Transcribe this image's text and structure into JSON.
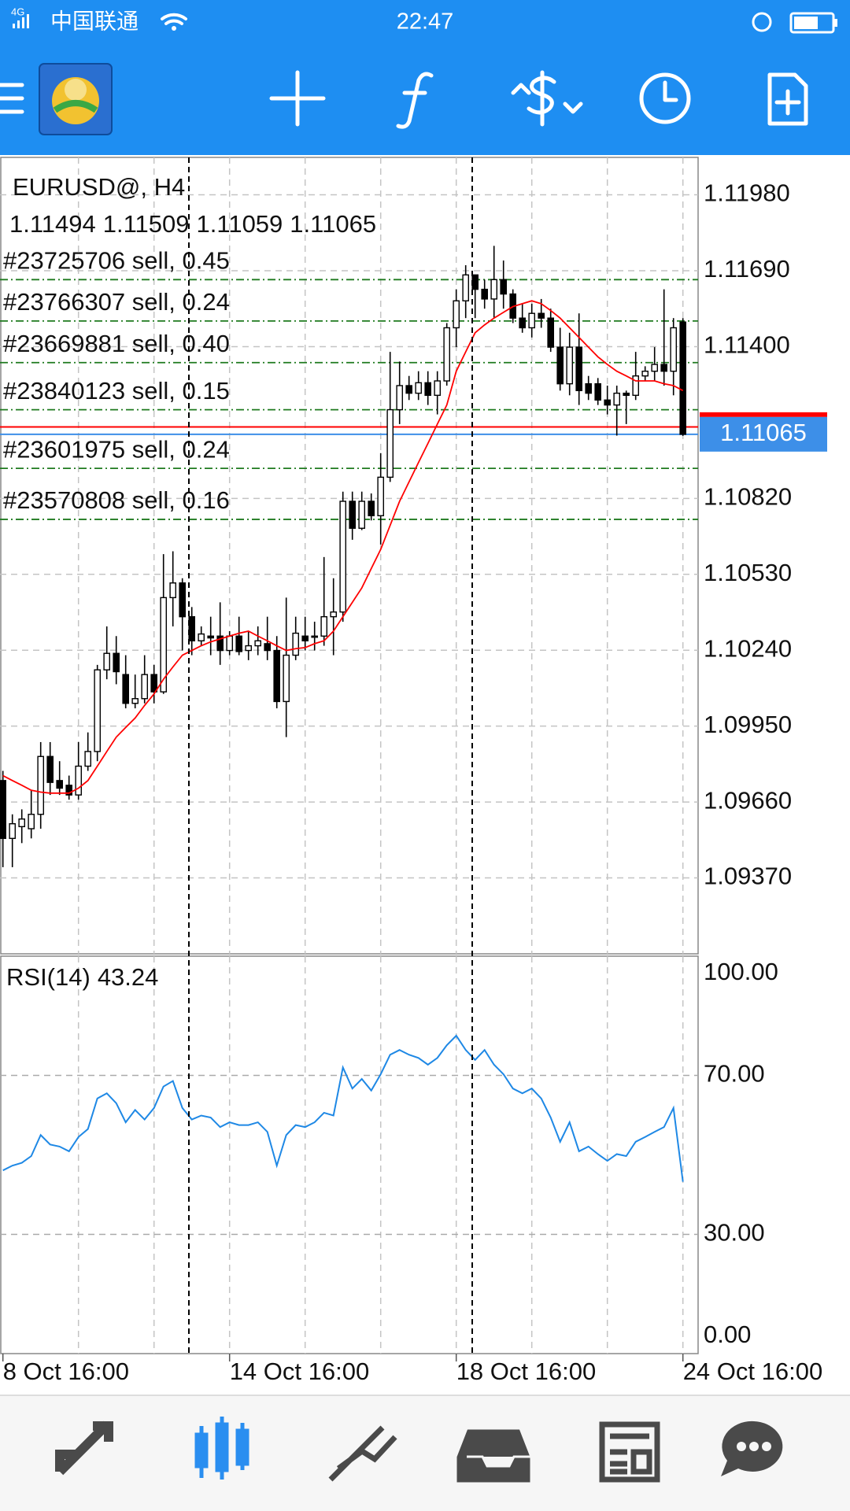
{
  "status_bar": {
    "network": "4G",
    "carrier": "中国联通",
    "time": "22:47"
  },
  "chart_data": [
    {
      "type": "candlestick",
      "title": "EURUSD@, H4",
      "categories": [
        "8 Oct 16:00",
        null,
        null,
        null,
        null,
        null,
        null,
        null,
        null,
        null,
        null,
        null,
        null,
        null,
        null,
        null,
        null,
        null,
        null,
        null,
        null,
        null,
        null,
        null,
        "14 Oct 16:00",
        null,
        null,
        null,
        null,
        null,
        null,
        null,
        null,
        null,
        null,
        null,
        null,
        null,
        null,
        null,
        null,
        null,
        null,
        null,
        null,
        null,
        null,
        null,
        "18 Oct 16:00",
        null,
        null,
        null,
        null,
        null,
        null,
        null,
        null,
        null,
        null,
        null,
        null,
        null,
        null,
        null,
        null,
        null,
        null,
        null,
        null,
        null,
        null,
        null,
        "24 Oct 16:00"
      ],
      "open": [
        1.09742,
        1.09521,
        1.09566,
        1.09558,
        1.09613,
        1.09834,
        1.09742,
        1.09724,
        1.09687,
        1.09797,
        1.09853,
        1.10165,
        1.10228,
        1.10147,
        1.10037,
        1.10055,
        1.10147,
        1.10081,
        1.10441,
        1.10497,
        1.10368,
        1.10276,
        1.10294,
        1.10294,
        1.10239,
        1.10294,
        1.10239,
        1.10257,
        1.10265,
        1.10239,
        1.10044,
        1.10221,
        1.10294,
        1.10294,
        1.10294,
        1.10368,
        1.10386,
        1.10809,
        1.10706,
        1.10809,
        1.10754,
        1.10901,
        1.11159,
        1.11251,
        1.11222,
        1.11262,
        1.11214,
        1.11269,
        1.11472,
        1.11575,
        1.11674,
        1.11619,
        1.11582,
        1.11656,
        1.11601,
        1.11509,
        1.11472,
        1.11527,
        1.11509,
        1.11398,
        1.11258,
        1.11398,
        1.11258,
        1.11258,
        1.11196,
        1.11177,
        1.11222,
        1.11214,
        1.11288,
        1.11306,
        1.11332,
        1.11306,
        1.11494
      ],
      "high": [
        1.09779,
        1.09613,
        1.09632,
        1.09705,
        1.09889,
        1.09889,
        1.09816,
        1.09761,
        1.09889,
        1.09926,
        1.10184,
        1.10331,
        1.10294,
        1.10221,
        1.10147,
        1.10221,
        1.10184,
        1.10607,
        1.10618,
        1.10515,
        1.10405,
        1.10331,
        1.10368,
        1.10423,
        1.10313,
        1.10368,
        1.10313,
        1.10331,
        1.10368,
        1.10294,
        1.10441,
        1.10368,
        1.10368,
        1.10349,
        1.10596,
        1.10515,
        1.10846,
        1.10846,
        1.10846,
        1.10839,
        1.10993,
        1.1138,
        1.11343,
        1.11288,
        1.11306,
        1.11306,
        1.11306,
        1.1149,
        1.11619,
        1.11711,
        1.11674,
        1.11656,
        1.11785,
        1.11729,
        1.11619,
        1.11564,
        1.11564,
        1.11582,
        1.11545,
        1.11472,
        1.11453,
        1.11527,
        1.11288,
        1.1128,
        1.11251,
        1.11251,
        1.11232,
        1.1138,
        1.11325,
        1.11398,
        1.11619,
        1.11509,
        1.11509
      ],
      "low": [
        1.09411,
        1.09411,
        1.09503,
        1.09521,
        1.09558,
        1.09687,
        1.09687,
        1.09669,
        1.09669,
        1.09779,
        1.09816,
        1.10129,
        1.1011,
        1.10018,
        1.10018,
        1.10037,
        1.10037,
        1.10073,
        1.10331,
        1.10239,
        1.10221,
        1.10257,
        1.10221,
        1.10184,
        1.10221,
        1.10221,
        1.10202,
        1.10221,
        1.10202,
        1.10018,
        1.09908,
        1.10202,
        1.10239,
        1.10239,
        1.10257,
        1.10221,
        1.10349,
        1.10662,
        1.10699,
        1.10736,
        1.10644,
        1.10883,
        1.11104,
        1.11196,
        1.11196,
        1.11177,
        1.11141,
        1.11251,
        1.11398,
        1.11509,
        1.11509,
        1.11545,
        1.11509,
        1.11545,
        1.1149,
        1.11453,
        1.11435,
        1.11472,
        1.1138,
        1.11232,
        1.11214,
        1.11177,
        1.11196,
        1.11177,
        1.11141,
        1.1106,
        1.11104,
        1.11196,
        1.11269,
        1.11269,
        1.11251,
        1.11214,
        1.11059
      ],
      "close": [
        1.09521,
        1.09577,
        1.09595,
        1.09613,
        1.09834,
        1.09735,
        1.09713,
        1.09687,
        1.09797,
        1.09853,
        1.10165,
        1.10228,
        1.10158,
        1.10037,
        1.10055,
        1.10147,
        1.10081,
        1.10441,
        1.10497,
        1.10368,
        1.10276,
        1.10302,
        1.10287,
        1.10239,
        1.10294,
        1.10235,
        1.10257,
        1.10276,
        1.10239,
        1.10044,
        1.10221,
        1.10305,
        1.10276,
        1.10294,
        1.10368,
        1.10386,
        1.10809,
        1.10706,
        1.10809,
        1.10754,
        1.10901,
        1.11159,
        1.11251,
        1.11222,
        1.11262,
        1.11214,
        1.11269,
        1.11472,
        1.11575,
        1.11674,
        1.11619,
        1.11582,
        1.11656,
        1.11601,
        1.11509,
        1.11472,
        1.11527,
        1.11509,
        1.11398,
        1.11258,
        1.11398,
        1.11232,
        1.11222,
        1.11196,
        1.11177,
        1.11222,
        1.11214,
        1.11288,
        1.11306,
        1.11332,
        1.11306,
        1.11472,
        1.11065
      ],
      "up_color": "#ffffff",
      "down_color": "#000000",
      "ma": {
        "color": "#ff0000",
        "values": [
          1.09761,
          1.09742,
          1.09724,
          1.09705,
          1.09698,
          1.09694,
          1.09694,
          1.09694,
          1.09713,
          1.09742,
          1.09797,
          1.09853,
          1.09908,
          1.09945,
          1.09981,
          1.10029,
          1.10073,
          1.10129,
          1.10176,
          1.10221,
          1.10239,
          1.10257,
          1.10272,
          1.10283,
          1.10294,
          1.10305,
          1.10313,
          1.10294,
          1.10276,
          1.10257,
          1.10239,
          1.10246,
          1.1025,
          1.10265,
          1.10276,
          1.10313,
          1.10368,
          1.10423,
          1.10478,
          1.10552,
          1.10625,
          1.10717,
          1.10809,
          1.10883,
          1.10957,
          1.1103,
          1.11104,
          1.11177,
          1.11306,
          1.1138,
          1.11453,
          1.11483,
          1.11509,
          1.11531,
          1.11553,
          1.11564,
          1.11575,
          1.11564,
          1.11538,
          1.11509,
          1.11472,
          1.11435,
          1.11398,
          1.11361,
          1.11332,
          1.11306,
          1.11288,
          1.11269,
          1.11269,
          1.11269,
          1.11258,
          1.11251,
          1.11232
        ]
      },
      "ask": 1.11093,
      "ask_color": "#ff0000",
      "bid_color": "#3d8fe8",
      "order_color": "#1f7a1f",
      "orders": [
        {
          "label": "#23725706 sell, 0.45",
          "price": 1.11656
        },
        {
          "label": "#23766307 sell, 0.24",
          "price": 1.11498
        },
        {
          "label": "#23669881 sell, 0.40",
          "price": 1.11339
        },
        {
          "label": "#23840123 sell, 0.15",
          "price": 1.11159
        },
        {
          "label": "#23601975 sell, 0.24",
          "price": 1.10935
        },
        {
          "label": "#23570808 sell, 0.16",
          "price": 1.1074
        }
      ],
      "ylim": [
        1.0908,
        1.12123
      ],
      "yticks": [
        {
          "value": 1.1198,
          "label": "1.11980"
        },
        {
          "value": 1.1169,
          "label": "1.11690"
        },
        {
          "value": 1.114,
          "label": "1.11400"
        },
        {
          "value": 1.1082,
          "label": "1.10820"
        },
        {
          "value": 1.1053,
          "label": "1.10530"
        },
        {
          "value": 1.1024,
          "label": "1.10240"
        },
        {
          "value": 1.0995,
          "label": "1.09950"
        },
        {
          "value": 1.0966,
          "label": "1.09660"
        },
        {
          "value": 1.0937,
          "label": "1.09370"
        }
      ],
      "grid": true
    },
    {
      "type": "line",
      "title": "RSI(14)",
      "color": "#1e88e5",
      "values": [
        46.1,
        47.3,
        48.0,
        49.7,
        55.0,
        52.6,
        52.1,
        50.9,
        54.5,
        56.5,
        64.2,
        65.5,
        63.0,
        58.2,
        61.3,
        58.9,
        61.8,
        67.2,
        68.6,
        61.8,
        58.9,
        59.9,
        59.4,
        57.0,
        58.2,
        57.5,
        57.5,
        58.2,
        55.8,
        47.3,
        55.0,
        57.5,
        57.0,
        58.2,
        60.6,
        59.9,
        72.0,
        66.7,
        69.1,
        66.2,
        70.3,
        75.2,
        76.4,
        75.2,
        74.4,
        72.7,
        74.4,
        77.6,
        80.0,
        76.4,
        73.9,
        76.4,
        72.7,
        70.3,
        66.7,
        65.5,
        66.7,
        64.2,
        59.4,
        53.3,
        58.2,
        50.9,
        52.1,
        50.2,
        48.5,
        50.2,
        49.7,
        53.3,
        54.5,
        55.8,
        57.0,
        61.8,
        43.24
      ],
      "ylim": [
        0,
        100
      ],
      "yticks": [
        {
          "value": 100,
          "label": "100.00"
        },
        {
          "value": 70,
          "label": "70.00"
        },
        {
          "value": 30,
          "label": "30.00"
        },
        {
          "value": 0,
          "label": "0.00"
        }
      ],
      "grid": true
    }
  ]
}
